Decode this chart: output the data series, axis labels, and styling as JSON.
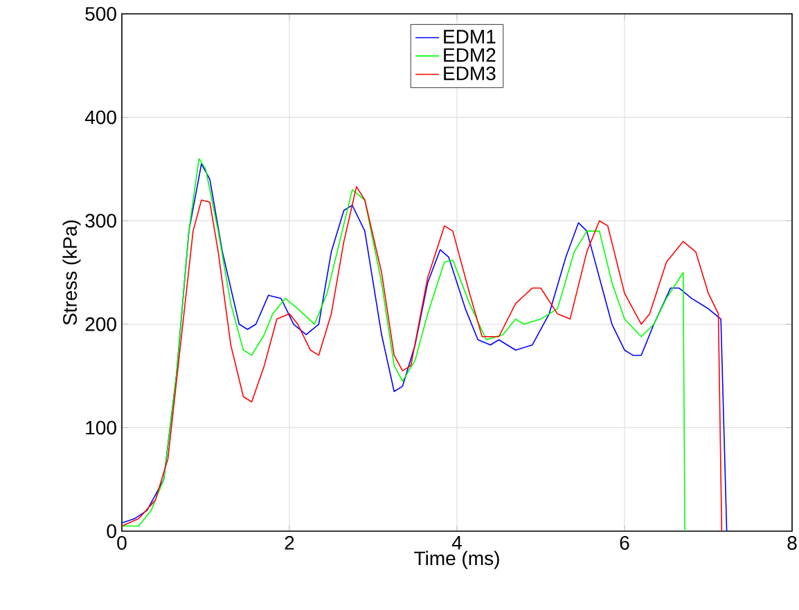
{
  "chart_data": {
    "type": "line",
    "xlabel": "Time (ms)",
    "ylabel": "Stress (kPa)",
    "xlim": [
      0,
      8
    ],
    "ylim": [
      0,
      500
    ],
    "xticks": [
      0,
      2,
      4,
      6,
      8
    ],
    "yticks": [
      0,
      100,
      200,
      300,
      400,
      500
    ],
    "grid": true,
    "legend": "top",
    "marker": "none",
    "line_style": "solid",
    "series": [
      {
        "name": "EDM1",
        "color": "#0000ff",
        "x": [
          0,
          0.15,
          0.3,
          0.5,
          0.65,
          0.8,
          0.95,
          1.05,
          1.2,
          1.4,
          1.5,
          1.6,
          1.75,
          1.9,
          2.05,
          2.2,
          2.35,
          2.5,
          2.65,
          2.75,
          2.9,
          3.1,
          3.25,
          3.35,
          3.5,
          3.65,
          3.8,
          3.9,
          4.1,
          4.25,
          4.4,
          4.5,
          4.7,
          4.9,
          5.1,
          5.3,
          5.45,
          5.55,
          5.7,
          5.85,
          6.0,
          6.1,
          6.2,
          6.35,
          6.55,
          6.65,
          6.8,
          7.0,
          7.15,
          7.22
        ],
        "values": [
          8,
          12,
          20,
          50,
          150,
          290,
          355,
          340,
          270,
          200,
          195,
          200,
          228,
          225,
          200,
          190,
          200,
          270,
          310,
          315,
          290,
          190,
          135,
          140,
          180,
          240,
          272,
          265,
          215,
          185,
          180,
          185,
          175,
          180,
          210,
          265,
          298,
          290,
          245,
          200,
          175,
          170,
          170,
          200,
          235,
          235,
          225,
          215,
          205,
          0
        ]
      },
      {
        "name": "EDM2",
        "color": "#00ff00",
        "x": [
          0,
          0.2,
          0.35,
          0.5,
          0.65,
          0.8,
          0.92,
          1.0,
          1.15,
          1.3,
          1.45,
          1.55,
          1.7,
          1.8,
          1.95,
          2.1,
          2.3,
          2.45,
          2.6,
          2.75,
          2.9,
          3.1,
          3.25,
          3.35,
          3.5,
          3.65,
          3.85,
          3.95,
          4.15,
          4.35,
          4.55,
          4.7,
          4.8,
          5.0,
          5.2,
          5.4,
          5.55,
          5.7,
          5.85,
          6.0,
          6.2,
          6.35,
          6.5,
          6.7,
          6.72
        ],
        "values": [
          5,
          5,
          20,
          50,
          150,
          290,
          360,
          350,
          290,
          220,
          175,
          170,
          190,
          210,
          225,
          215,
          200,
          230,
          280,
          330,
          320,
          240,
          160,
          145,
          165,
          210,
          260,
          262,
          220,
          185,
          190,
          205,
          200,
          205,
          215,
          270,
          290,
          290,
          240,
          205,
          188,
          200,
          225,
          250,
          0
        ]
      },
      {
        "name": "EDM3",
        "color": "#ff0000",
        "x": [
          0,
          0.2,
          0.4,
          0.55,
          0.7,
          0.85,
          0.95,
          1.05,
          1.15,
          1.3,
          1.45,
          1.55,
          1.7,
          1.85,
          2.0,
          2.1,
          2.25,
          2.35,
          2.5,
          2.65,
          2.8,
          2.9,
          3.1,
          3.25,
          3.35,
          3.45,
          3.65,
          3.85,
          3.95,
          4.15,
          4.3,
          4.5,
          4.7,
          4.9,
          5.0,
          5.2,
          5.35,
          5.55,
          5.7,
          5.8,
          6.0,
          6.2,
          6.3,
          6.5,
          6.7,
          6.85,
          7.0,
          7.12,
          7.16
        ],
        "values": [
          5,
          12,
          30,
          70,
          180,
          290,
          320,
          318,
          270,
          180,
          130,
          125,
          160,
          205,
          210,
          200,
          175,
          170,
          210,
          280,
          333,
          320,
          250,
          170,
          155,
          160,
          245,
          295,
          290,
          230,
          188,
          188,
          220,
          235,
          235,
          210,
          205,
          270,
          300,
          295,
          230,
          200,
          210,
          260,
          280,
          270,
          230,
          210,
          0
        ]
      }
    ]
  }
}
